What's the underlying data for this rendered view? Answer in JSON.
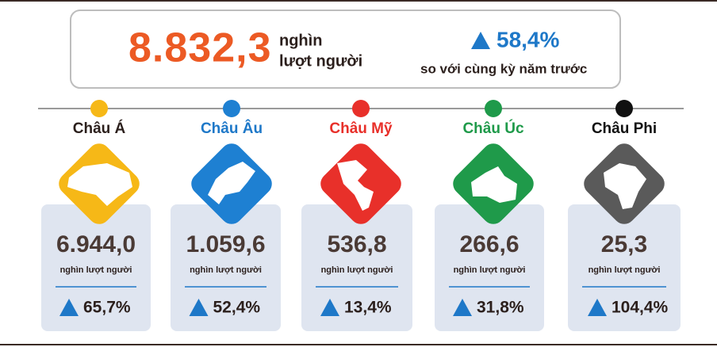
{
  "header": {
    "total": "8.832,3",
    "unit_line1": "nghìn",
    "unit_line2": "lượt người",
    "growth": "58,4%",
    "growth_note": "so với cùng kỳ năm trước"
  },
  "regions": [
    {
      "name": "Châu Á",
      "value": "6.944,0",
      "unit": "nghìn lượt người",
      "growth": "65,7%"
    },
    {
      "name": "Châu Âu",
      "value": "1.059,6",
      "unit": "nghìn lượt người",
      "growth": "52,4%"
    },
    {
      "name": "Châu Mỹ",
      "value": "536,8",
      "unit": "nghìn lượt người",
      "growth": "13,4%"
    },
    {
      "name": "Châu Úc",
      "value": "266,6",
      "unit": "nghìn lượt người",
      "growth": "31,8%"
    },
    {
      "name": "Châu Phi",
      "value": "25,3",
      "unit": "nghìn lượt người",
      "growth": "104,4%"
    }
  ]
}
